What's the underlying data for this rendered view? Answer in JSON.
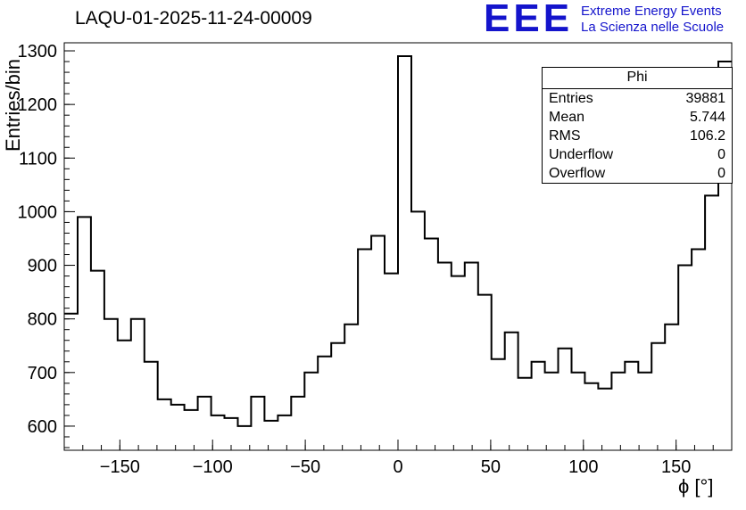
{
  "title": "LAQU-01-2025-11-24-00009",
  "logo": {
    "text": "EEE",
    "line1": "Extreme Energy Events",
    "line2": "La Scienza nelle Scuole",
    "color": "#1414cc"
  },
  "stats": {
    "title": "Phi",
    "rows": [
      {
        "label": "Entries",
        "value": "39881"
      },
      {
        "label": "Mean",
        "value": "5.744"
      },
      {
        "label": "RMS",
        "value": "106.2"
      },
      {
        "label": "Underflow",
        "value": "0"
      },
      {
        "label": "Overflow",
        "value": "0"
      }
    ]
  },
  "chart_data": {
    "type": "bar",
    "subtype": "step-histogram",
    "title": "LAQU-01-2025-11-24-00009",
    "xlabel": "ϕ [°]",
    "ylabel": "Entries/bin",
    "xlim": [
      -180,
      180
    ],
    "ylim": [
      555,
      1315
    ],
    "grid": false,
    "legend": false,
    "line_color": "#000000",
    "bin_start": -180,
    "bin_width": 7.2,
    "values": [
      810,
      990,
      890,
      800,
      760,
      800,
      720,
      650,
      640,
      630,
      655,
      620,
      615,
      600,
      655,
      610,
      620,
      655,
      700,
      730,
      755,
      790,
      930,
      955,
      885,
      1290,
      1000,
      950,
      905,
      880,
      905,
      845,
      725,
      775,
      690,
      720,
      700,
      745,
      700,
      680,
      670,
      700,
      720,
      700,
      755,
      790,
      900,
      930,
      1030,
      1280
    ],
    "xticks": {
      "values": [
        -150,
        -100,
        -50,
        0,
        50,
        100,
        150
      ],
      "labels": [
        "−150",
        "−100",
        "−50",
        "0",
        "50",
        "100",
        "150"
      ],
      "minor_step": 10
    },
    "yticks": {
      "values": [
        600,
        700,
        800,
        900,
        1000,
        1100,
        1200,
        1300
      ],
      "labels": [
        "600",
        "700",
        "800",
        "900",
        "1000",
        "1100",
        "1200",
        "1300"
      ],
      "minor_step": 20
    }
  }
}
